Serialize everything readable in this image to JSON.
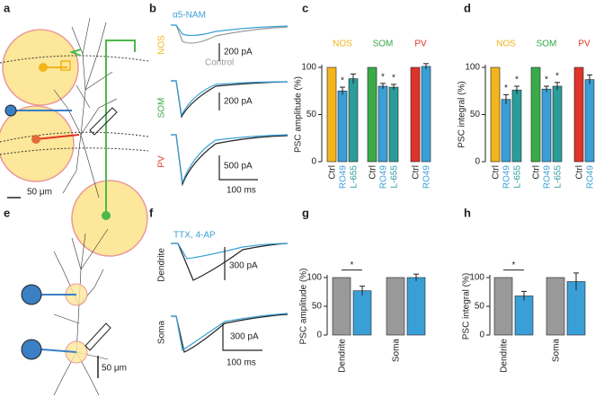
{
  "panels": {
    "labels": [
      "a",
      "b",
      "c",
      "d",
      "e",
      "f",
      "g",
      "h"
    ]
  },
  "panel_a": {
    "scale_bar": "50 μm"
  },
  "panel_b": {
    "legend": [
      "α5-NAM",
      "Control"
    ],
    "rows": [
      "NOS",
      "SOM",
      "PV"
    ],
    "scale_bars": [
      "200 pA",
      "200 pA",
      "500 pA",
      "100 ms"
    ]
  },
  "panel_e": {
    "scale_bar": "50 μm"
  },
  "panel_f": {
    "legend": "TTX, 4-AP",
    "rows": [
      "Dendrite",
      "Soma"
    ],
    "scale_bars": [
      "300 pA",
      "300 pA",
      "100 ms"
    ]
  },
  "chart_data": [
    {
      "type": "bar",
      "y_label": "PSC amplitude (%)",
      "ylim": [
        0,
        110
      ],
      "yticks": [
        0,
        50,
        100
      ],
      "groups": [
        {
          "name": "NOS",
          "color": "#f2b418",
          "categories": [
            "Ctrl",
            "RO49",
            "L-655"
          ],
          "category_colors": [
            "#222222",
            "#3a9fd6",
            "#2a9d9a"
          ],
          "bar_colors": [
            "#f4b51c",
            "#3a9fd6",
            "#2a9d9a"
          ],
          "values": [
            100,
            75,
            88
          ],
          "errors": [
            null,
            4,
            5
          ],
          "stars": [
            null,
            "*",
            null
          ]
        },
        {
          "name": "SOM",
          "color": "#35a845",
          "categories": [
            "Ctrl",
            "RO49",
            "L-655"
          ],
          "category_colors": [
            "#222222",
            "#3a9fd6",
            "#2a9d9a"
          ],
          "bar_colors": [
            "#3aab49",
            "#3a9fd6",
            "#2a9d9a"
          ],
          "values": [
            100,
            80,
            79
          ],
          "errors": [
            null,
            3,
            3
          ],
          "stars": [
            null,
            "*",
            "*"
          ]
        },
        {
          "name": "PV",
          "color": "#e23128",
          "categories": [
            "Ctrl",
            "RO49"
          ],
          "category_colors": [
            "#222222",
            "#3a9fd6"
          ],
          "bar_colors": [
            "#e0332b",
            "#3a9fd6"
          ],
          "values": [
            100,
            101
          ],
          "errors": [
            null,
            3
          ],
          "stars": [
            null,
            null
          ]
        }
      ]
    },
    {
      "type": "bar",
      "y_label": "PSC integral (%)",
      "ylim": [
        0,
        110
      ],
      "yticks": [
        0,
        50,
        100
      ],
      "groups": [
        {
          "name": "NOS",
          "color": "#f2b418",
          "categories": [
            "Ctrl",
            "RO49",
            "L-655"
          ],
          "category_colors": [
            "#222222",
            "#3a9fd6",
            "#2a9d9a"
          ],
          "bar_colors": [
            "#f4b51c",
            "#3a9fd6",
            "#2a9d9a"
          ],
          "values": [
            100,
            66,
            76
          ],
          "errors": [
            null,
            5,
            4
          ],
          "stars": [
            null,
            "*",
            "*"
          ]
        },
        {
          "name": "SOM",
          "color": "#35a845",
          "categories": [
            "Ctrl",
            "RO49",
            "L-655"
          ],
          "category_colors": [
            "#222222",
            "#3a9fd6",
            "#2a9d9a"
          ],
          "bar_colors": [
            "#3aab49",
            "#3a9fd6",
            "#2a9d9a"
          ],
          "values": [
            100,
            77,
            80
          ],
          "errors": [
            null,
            3,
            4
          ],
          "stars": [
            null,
            "*",
            "*"
          ]
        },
        {
          "name": "PV",
          "color": "#e23128",
          "categories": [
            "Ctrl",
            "RO49"
          ],
          "category_colors": [
            "#222222",
            "#3a9fd6"
          ],
          "bar_colors": [
            "#e0332b",
            "#3a9fd6"
          ],
          "values": [
            100,
            87
          ],
          "errors": [
            null,
            5
          ],
          "stars": [
            null,
            null
          ]
        }
      ]
    },
    {
      "type": "bar",
      "y_label": "PSC amplitude (%)",
      "ylim": [
        0,
        110
      ],
      "yticks": [
        0,
        50,
        100
      ],
      "groups": [
        {
          "name": "Dendrite",
          "bar_colors": [
            "#999999",
            "#3a9fd6"
          ],
          "values": [
            100,
            77
          ],
          "errors": [
            null,
            8
          ],
          "star": "*"
        },
        {
          "name": "Soma",
          "bar_colors": [
            "#999999",
            "#3a9fd6"
          ],
          "values": [
            100,
            100
          ],
          "errors": [
            null,
            6
          ]
        }
      ]
    },
    {
      "type": "bar",
      "y_label": "PSC integral (%)",
      "ylim": [
        0,
        110
      ],
      "yticks": [
        0,
        50,
        100
      ],
      "groups": [
        {
          "name": "Dendrite",
          "bar_colors": [
            "#999999",
            "#3a9fd6"
          ],
          "values": [
            100,
            68
          ],
          "errors": [
            null,
            8
          ],
          "star": "*"
        },
        {
          "name": "Soma",
          "bar_colors": [
            "#999999",
            "#3a9fd6"
          ],
          "values": [
            100,
            93
          ],
          "errors": [
            null,
            15
          ]
        }
      ]
    }
  ]
}
